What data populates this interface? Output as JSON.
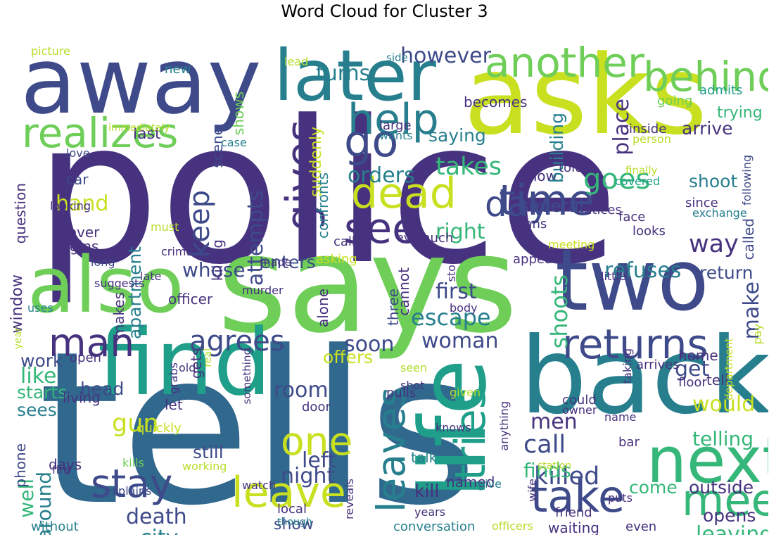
{
  "title": "Word Cloud for Cluster 3",
  "colors": {
    "purple": "#46327e",
    "indigo": "#3e4a89",
    "blue": "#31688e",
    "teal": "#277f8e",
    "cyan": "#1f9e89",
    "green": "#35b779",
    "lime": "#6ece58",
    "lightgreen": "#b5de2b",
    "yellow": "#c8e020",
    "darkpurple": "#440154"
  },
  "words": [
    "police",
    "tells",
    "says",
    "asks",
    "away",
    "back",
    "find",
    "later",
    "two",
    "life",
    "also",
    "next",
    "another",
    "behind",
    "realizes",
    "help",
    "gives",
    "time",
    "dead",
    "see",
    "go",
    "meet",
    "take",
    "leave",
    "returns",
    "man",
    "stay",
    "tries",
    "leaves",
    "one",
    "agrees",
    "turns",
    "however",
    "day",
    "goes",
    "orders",
    "takes",
    "keep",
    "attempts",
    "way",
    "right",
    "place",
    "refuses",
    "shoots",
    "first",
    "escape",
    "woman",
    "offers",
    "soon",
    "make",
    "whose",
    "apartment",
    "window",
    "room",
    "gun",
    "hand",
    "like",
    "around",
    "death",
    "city",
    "night",
    "killed",
    "call",
    "get",
    "would",
    "finds",
    "telling",
    "leaving",
    "left",
    "men",
    "opens",
    "come",
    "kill",
    "still",
    "well",
    "sees",
    "work",
    "head",
    "starts",
    "outside",
    "return",
    "shoot",
    "several",
    "know",
    "saying",
    "arrive",
    "building",
    "suddenly",
    "confronts",
    "scene",
    "shows",
    "becomes",
    "enters",
    "killing",
    "cannot",
    "alone",
    "three",
    "called",
    "car",
    "last",
    "never",
    "question",
    "begins",
    "phone",
    "days",
    "talk",
    "named",
    "show",
    "conversation",
    "waiting",
    "tell",
    "home",
    "floor",
    "department",
    "living",
    "let",
    "gets",
    "makes",
    "quickly",
    "new",
    "picture",
    "lead",
    "side",
    "trying",
    "admits",
    "going",
    "inside",
    "person",
    "large",
    "wants",
    "immediately",
    "case",
    "love",
    "looking",
    "told",
    "finally",
    "covered",
    "following",
    "since",
    "exchange",
    "face",
    "notices",
    "plans",
    "looks",
    "much",
    "ever",
    "calls",
    "must",
    "crime",
    "meeting",
    "appears",
    "asking",
    "made",
    "story",
    "little",
    "long",
    "late",
    "suggests",
    "uses",
    "murder",
    "officer",
    "body",
    "year",
    "real",
    "seen",
    "pay",
    "open",
    "something",
    "grabs",
    "old",
    "pulls",
    "shot",
    "door",
    "given",
    "anything",
    "taking",
    "arrives",
    "could",
    "owner",
    "bar",
    "knows",
    "fire",
    "kills",
    "working",
    "watch",
    "reveals",
    "station",
    "wife",
    "give",
    "explains",
    "local",
    "though",
    "years",
    "friend",
    "puts",
    "even",
    "officers",
    "without",
    "name"
  ]
}
